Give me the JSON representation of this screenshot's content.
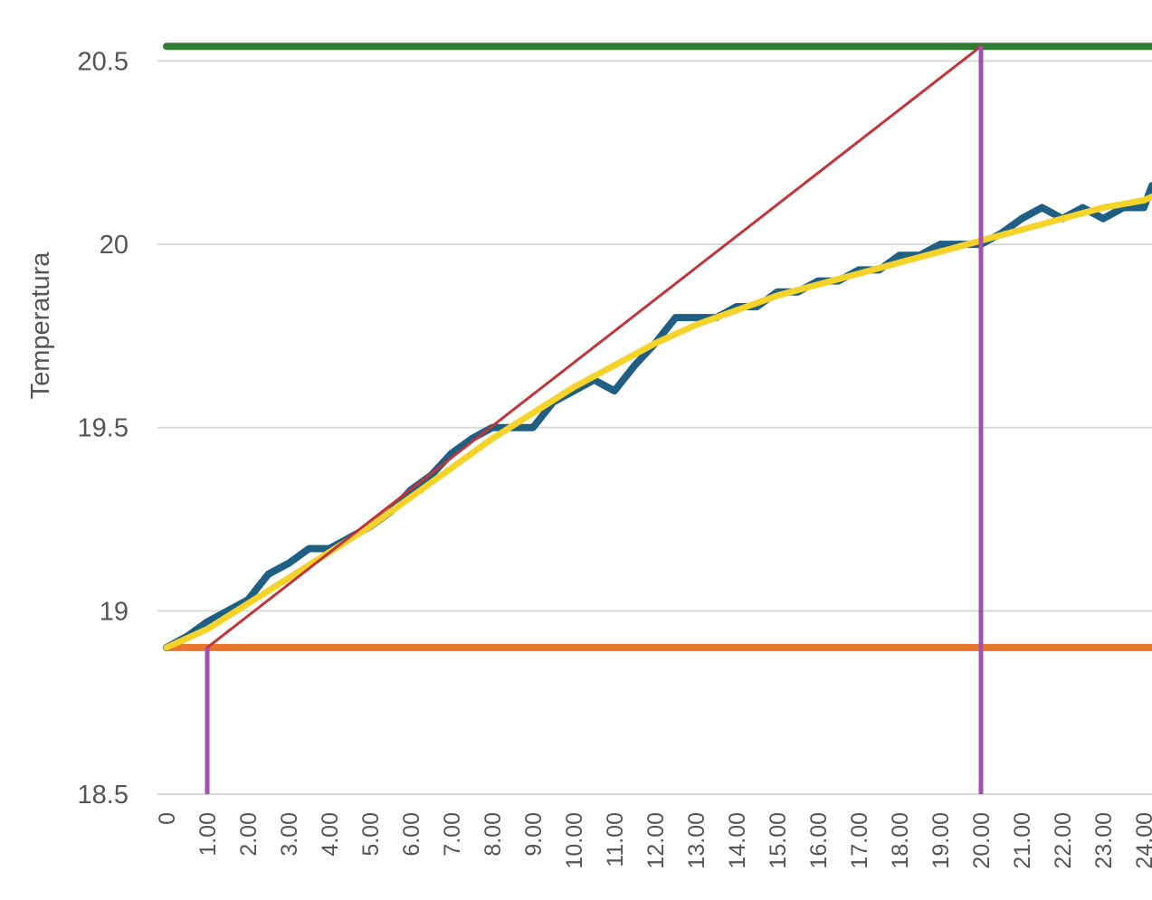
{
  "chart_data": {
    "type": "line",
    "title": "",
    "xlabel": "",
    "ylabel": "Temperatura",
    "grid": true,
    "legend": "none",
    "ylim": [
      18.5,
      20.58
    ],
    "xlim": [
      0,
      24.2
    ],
    "y_ticks": [
      {
        "value": 18.5,
        "label": "18.5"
      },
      {
        "value": 19,
        "label": "19"
      },
      {
        "value": 19.5,
        "label": "19.5"
      },
      {
        "value": 20,
        "label": "20"
      },
      {
        "value": 20.5,
        "label": "20.5"
      }
    ],
    "x_ticks": [
      {
        "value": 0,
        "label": "0"
      },
      {
        "value": 1,
        "label": "1.00"
      },
      {
        "value": 2,
        "label": "2.00"
      },
      {
        "value": 3,
        "label": "3.00"
      },
      {
        "value": 4,
        "label": "4.00"
      },
      {
        "value": 5,
        "label": "5.00"
      },
      {
        "value": 6,
        "label": "6.00"
      },
      {
        "value": 7,
        "label": "7.00"
      },
      {
        "value": 8,
        "label": "8.00"
      },
      {
        "value": 9,
        "label": "9.00"
      },
      {
        "value": 10,
        "label": "10.00"
      },
      {
        "value": 11,
        "label": "11.00"
      },
      {
        "value": 12,
        "label": "12.00"
      },
      {
        "value": 13,
        "label": "13.00"
      },
      {
        "value": 14,
        "label": "14.00"
      },
      {
        "value": 15,
        "label": "15.00"
      },
      {
        "value": 16,
        "label": "16.00"
      },
      {
        "value": 17,
        "label": "17.00"
      },
      {
        "value": 18,
        "label": "18.00"
      },
      {
        "value": 19,
        "label": "19.00"
      },
      {
        "value": 20,
        "label": "20.00"
      },
      {
        "value": 21,
        "label": "21.00"
      },
      {
        "value": 22,
        "label": "22.00"
      },
      {
        "value": 23,
        "label": "23.00"
      },
      {
        "value": 24,
        "label": "24.00"
      }
    ],
    "series": [
      {
        "kind": "measured",
        "color": "#1f5f84",
        "x": [
          0,
          0.5,
          1,
          1.5,
          2,
          2.5,
          3,
          3.5,
          4,
          4.5,
          5,
          5.5,
          6,
          6.5,
          7,
          7.5,
          8,
          8.5,
          9,
          9.5,
          10,
          10.5,
          11,
          11.5,
          12,
          12.5,
          13,
          13.5,
          14,
          14.5,
          15,
          15.5,
          16,
          16.5,
          17,
          17.5,
          18,
          18.5,
          19,
          19.5,
          20,
          20.5,
          21,
          21.5,
          22,
          22.5,
          23,
          23.5,
          24,
          24.2
        ],
        "y": [
          18.9,
          18.93,
          18.97,
          19.0,
          19.03,
          19.1,
          19.13,
          19.17,
          19.17,
          19.2,
          19.23,
          19.27,
          19.33,
          19.37,
          19.43,
          19.47,
          19.5,
          19.5,
          19.5,
          19.57,
          19.6,
          19.63,
          19.6,
          19.67,
          19.73,
          19.8,
          19.8,
          19.8,
          19.83,
          19.83,
          19.87,
          19.87,
          19.9,
          19.9,
          19.93,
          19.93,
          19.97,
          19.97,
          20.0,
          20.0,
          20.0,
          20.03,
          20.07,
          20.1,
          20.07,
          20.1,
          20.07,
          20.1,
          20.1,
          20.16
        ]
      },
      {
        "kind": "fitted-curve",
        "color": "#f5d32a",
        "x": [
          0,
          1,
          2,
          3,
          4,
          5,
          6,
          7,
          8,
          9,
          10,
          11,
          12,
          13,
          14,
          15,
          16,
          17,
          18,
          19,
          20,
          21,
          22,
          23,
          24,
          24.2
        ],
        "y": [
          18.9,
          18.95,
          19.02,
          19.09,
          19.16,
          19.23,
          19.31,
          19.39,
          19.47,
          19.54,
          19.61,
          19.67,
          19.73,
          19.78,
          19.82,
          19.86,
          19.89,
          19.92,
          19.95,
          19.98,
          20.01,
          20.04,
          20.07,
          20.1,
          20.12,
          20.13
        ]
      },
      {
        "kind": "tangent",
        "color": "#c0343a",
        "x": [
          1,
          20
        ],
        "y": [
          18.9,
          20.54
        ]
      }
    ],
    "reference_lines": [
      {
        "kind": "horizontal",
        "value": 20.54,
        "color": "#2e7d32"
      },
      {
        "kind": "horizontal",
        "value": 18.9,
        "color": "#e8762d"
      },
      {
        "kind": "vertical",
        "value": 1,
        "y_range": [
          18.5,
          18.9
        ],
        "color": "#a64fb3"
      },
      {
        "kind": "vertical",
        "value": 20,
        "y_range": [
          18.5,
          20.54
        ],
        "color": "#a64fb3"
      }
    ],
    "colors": {
      "grid": "#d9d9d9",
      "text": "#555555"
    }
  }
}
